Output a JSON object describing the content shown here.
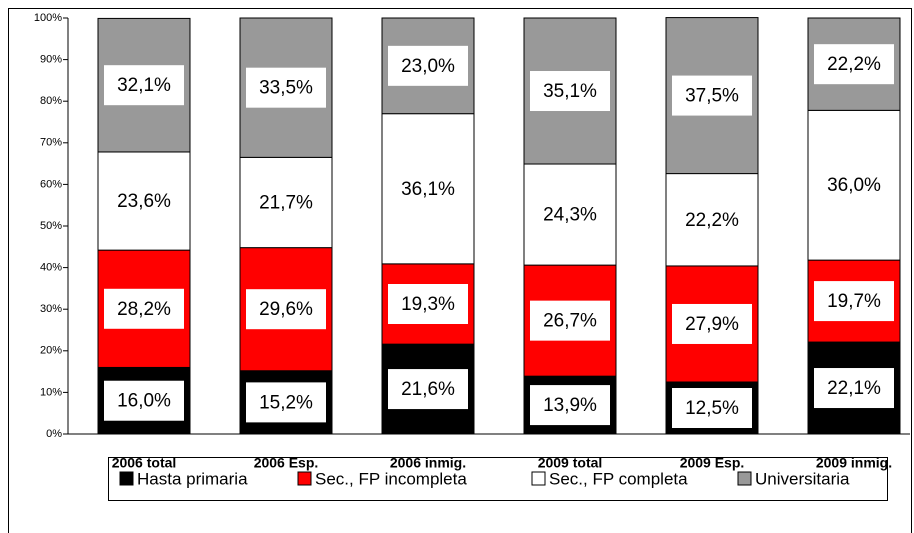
{
  "chart_data": {
    "type": "stacked_bar",
    "categories": [
      "2006 total",
      "2006 Esp.",
      "2006 inmig.",
      "2009 total",
      "2009 Esp.",
      "2009 inmig."
    ],
    "series": [
      {
        "name": "Hasta primaria",
        "color": "#000000",
        "values": [
          16.0,
          15.2,
          21.6,
          13.9,
          12.5,
          22.1
        ],
        "value_labels": [
          "16,0%",
          "15,2%",
          "21,6%",
          "13,9%",
          "12,5%",
          "22,1%"
        ]
      },
      {
        "name": "Sec., FP incompleta",
        "color": "#ff0000",
        "values": [
          28.2,
          29.6,
          19.3,
          26.7,
          27.9,
          19.7
        ],
        "value_labels": [
          "28,2%",
          "29,6%",
          "19,3%",
          "26,7%",
          "27,9%",
          "19,7%"
        ]
      },
      {
        "name": "Sec., FP completa",
        "color": "#ffffff",
        "values": [
          23.6,
          21.7,
          36.1,
          24.3,
          22.2,
          36.0
        ],
        "value_labels": [
          "23,6%",
          "21,7%",
          "36,1%",
          "24,3%",
          "22,2%",
          "36,0%"
        ]
      },
      {
        "name": "Universitaria",
        "color": "#999999",
        "values": [
          32.1,
          33.5,
          23.0,
          35.1,
          37.5,
          22.2
        ],
        "value_labels": [
          "32,1%",
          "33,5%",
          "23,0%",
          "35,1%",
          "37,5%",
          "22,2%"
        ]
      }
    ],
    "ylim": [
      0,
      100
    ],
    "yticks": [
      {
        "value": 0,
        "label": "0%"
      },
      {
        "value": 10,
        "label": "10%"
      },
      {
        "value": 20,
        "label": "20%"
      },
      {
        "value": 30,
        "label": "30%"
      },
      {
        "value": 40,
        "label": "40%"
      },
      {
        "value": 50,
        "label": "50%"
      },
      {
        "value": 60,
        "label": "60%"
      },
      {
        "value": 70,
        "label": "70%"
      },
      {
        "value": 80,
        "label": "80%"
      },
      {
        "value": 90,
        "label": "90%"
      },
      {
        "value": 100,
        "label": "100%"
      }
    ],
    "legend": "bottom"
  }
}
